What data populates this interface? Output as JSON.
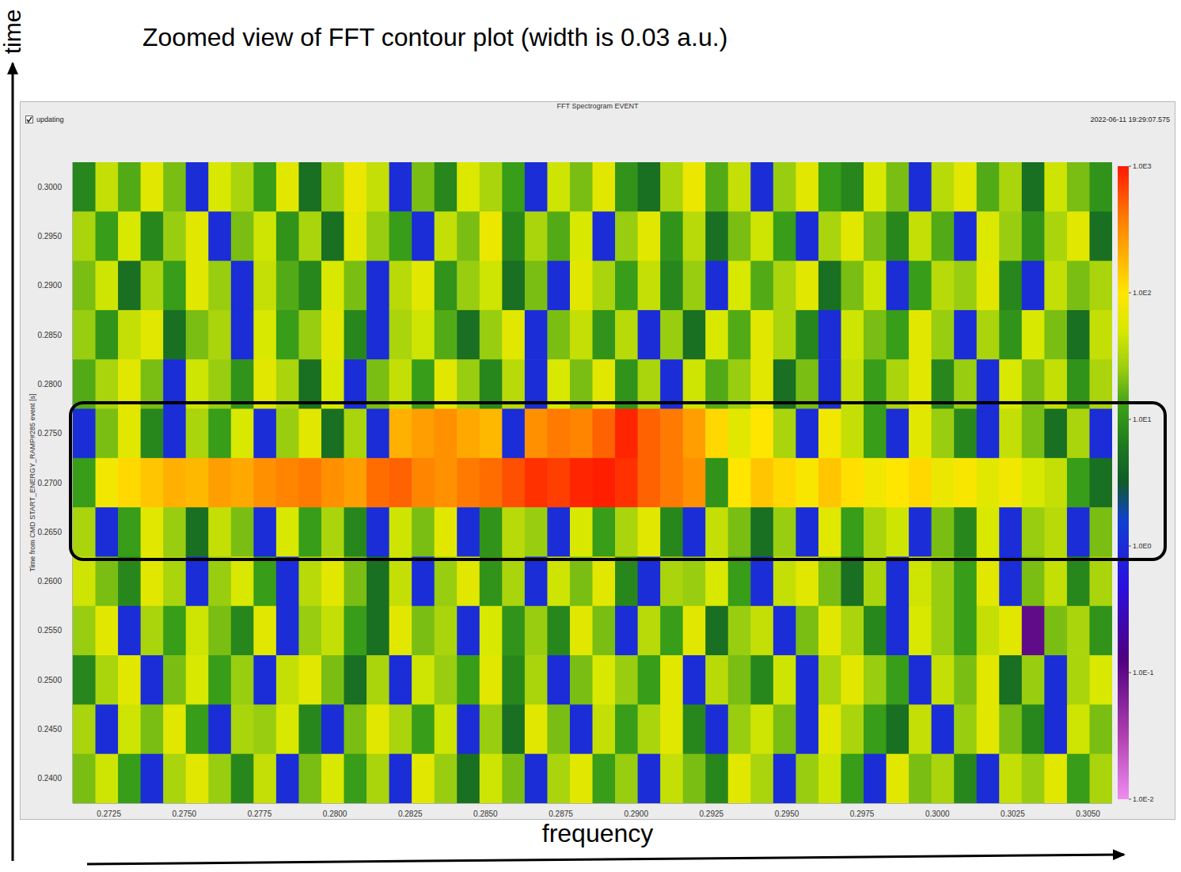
{
  "title": "Zoomed view of FFT contour plot (width is 0.03 a.u.)",
  "y_arrow_label": "time",
  "x_arrow_label": "frequency",
  "window": {
    "title": "FFT Spectrogram EVENT",
    "checkbox": "updating",
    "timestamp": "2022-06-11 19:29:07.575"
  },
  "chart_data": {
    "type": "heatmap",
    "y_label": "Time from CMD START_ENERGY_RAMP#285 event [s]",
    "x": [
      0.271675,
      0.272425,
      0.273175,
      0.273925,
      0.274675,
      0.275425,
      0.276175,
      0.276925,
      0.277675,
      0.278425,
      0.279175,
      0.279925,
      0.280675,
      0.281425,
      0.282175,
      0.282925,
      0.283675,
      0.284425,
      0.285175,
      0.285925,
      0.286675,
      0.287425,
      0.288175,
      0.288925,
      0.289675,
      0.290425,
      0.291175,
      0.291925,
      0.292675,
      0.293425,
      0.294175,
      0.294925,
      0.295675,
      0.296425,
      0.297175,
      0.297925,
      0.298675,
      0.299425,
      0.300175,
      0.300925,
      0.301675,
      0.302425,
      0.303175,
      0.303925,
      0.304675,
      0.305425
    ],
    "y": [
      0.3,
      0.295,
      0.29,
      0.285,
      0.28,
      0.275,
      0.27,
      0.265,
      0.26,
      0.255,
      0.25,
      0.245,
      0.24
    ],
    "cells": [
      [
        8,
        40,
        15,
        60,
        20,
        1,
        50,
        30,
        12,
        60,
        5,
        25,
        70,
        40,
        1,
        20,
        8,
        55,
        30,
        12,
        1,
        45,
        20,
        60,
        10,
        5,
        30,
        70,
        15,
        40,
        1,
        25,
        60,
        12,
        8,
        50,
        20,
        1,
        35,
        60,
        15,
        30,
        5,
        45,
        20,
        10
      ],
      [
        30,
        12,
        50,
        8,
        25,
        60,
        1,
        20,
        45,
        10,
        30,
        5,
        60,
        25,
        12,
        1,
        40,
        20,
        70,
        8,
        30,
        15,
        50,
        1,
        25,
        60,
        10,
        35,
        5,
        20,
        45,
        12,
        1,
        30,
        60,
        20,
        8,
        40,
        15,
        1,
        55,
        25,
        10,
        30,
        60,
        5
      ],
      [
        20,
        45,
        5,
        30,
        12,
        60,
        25,
        1,
        40,
        15,
        8,
        50,
        20,
        1,
        35,
        60,
        10,
        25,
        45,
        5,
        20,
        1,
        60,
        30,
        12,
        40,
        8,
        25,
        1,
        50,
        15,
        30,
        60,
        5,
        20,
        45,
        1,
        12,
        35,
        25,
        60,
        8,
        1,
        40,
        20,
        30
      ],
      [
        25,
        10,
        40,
        60,
        5,
        20,
        30,
        1,
        50,
        12,
        25,
        60,
        8,
        1,
        30,
        45,
        15,
        5,
        25,
        60,
        1,
        20,
        40,
        10,
        35,
        1,
        25,
        5,
        50,
        15,
        60,
        30,
        8,
        1,
        45,
        20,
        12,
        60,
        25,
        1,
        30,
        10,
        50,
        20,
        5,
        40
      ],
      [
        15,
        30,
        60,
        20,
        1,
        45,
        25,
        10,
        60,
        30,
        5,
        50,
        1,
        20,
        40,
        12,
        60,
        25,
        8,
        35,
        1,
        50,
        20,
        60,
        10,
        30,
        1,
        45,
        15,
        25,
        60,
        5,
        20,
        1,
        40,
        12,
        30,
        60,
        8,
        25,
        1,
        50,
        20,
        40,
        10,
        30
      ],
      [
        1,
        20,
        60,
        8,
        1,
        30,
        12,
        50,
        1,
        25,
        60,
        5,
        30,
        1,
        200,
        250,
        300,
        220,
        180,
        1,
        300,
        400,
        350,
        500,
        900,
        500,
        400,
        250,
        120,
        60,
        100,
        30,
        1,
        80,
        40,
        12,
        1,
        60,
        25,
        8,
        1,
        40,
        20,
        5,
        30,
        1
      ],
      [
        12,
        80,
        120,
        150,
        200,
        180,
        250,
        220,
        300,
        350,
        400,
        300,
        250,
        450,
        500,
        350,
        300,
        400,
        450,
        600,
        800,
        700,
        900,
        950,
        800,
        500,
        400,
        300,
        10,
        100,
        150,
        120,
        90,
        150,
        110,
        80,
        100,
        120,
        70,
        90,
        60,
        80,
        50,
        40,
        12,
        5
      ],
      [
        30,
        1,
        12,
        60,
        25,
        5,
        40,
        20,
        1,
        50,
        12,
        30,
        8,
        1,
        45,
        20,
        60,
        1,
        10,
        35,
        25,
        1,
        50,
        12,
        30,
        60,
        8,
        1,
        40,
        20,
        5,
        25,
        1,
        60,
        12,
        30,
        45,
        1,
        20,
        8,
        50,
        1,
        25,
        35,
        1,
        20
      ],
      [
        45,
        20,
        8,
        60,
        30,
        1,
        25,
        50,
        12,
        1,
        35,
        60,
        20,
        5,
        40,
        1,
        25,
        60,
        10,
        30,
        1,
        45,
        20,
        60,
        8,
        1,
        30,
        25,
        50,
        12,
        1,
        40,
        60,
        20,
        5,
        30,
        1,
        45,
        25,
        12,
        60,
        1,
        20,
        40,
        8,
        30
      ],
      [
        25,
        60,
        1,
        30,
        12,
        45,
        20,
        8,
        60,
        1,
        25,
        40,
        12,
        5,
        60,
        20,
        30,
        1,
        50,
        10,
        25,
        8,
        60,
        20,
        1,
        35,
        12,
        60,
        5,
        25,
        40,
        1,
        20,
        60,
        30,
        8,
        1,
        50,
        25,
        12,
        40,
        60,
        0.1,
        20,
        30,
        10
      ],
      [
        8,
        30,
        60,
        1,
        20,
        50,
        12,
        25,
        1,
        40,
        60,
        20,
        5,
        30,
        1,
        45,
        25,
        12,
        60,
        8,
        30,
        1,
        20,
        50,
        25,
        12,
        60,
        1,
        35,
        20,
        8,
        45,
        1,
        30,
        60,
        25,
        12,
        1,
        40,
        20,
        60,
        5,
        25,
        1,
        30,
        50
      ],
      [
        30,
        1,
        45,
        20,
        60,
        12,
        1,
        30,
        25,
        50,
        8,
        1,
        20,
        60,
        30,
        12,
        45,
        1,
        25,
        5,
        60,
        20,
        1,
        40,
        12,
        30,
        60,
        8,
        1,
        25,
        45,
        20,
        1,
        60,
        30,
        12,
        5,
        40,
        1,
        25,
        60,
        20,
        8,
        1,
        45,
        20
      ],
      [
        20,
        45,
        12,
        1,
        30,
        60,
        25,
        8,
        40,
        1,
        20,
        50,
        12,
        30,
        1,
        60,
        25,
        5,
        45,
        20,
        1,
        30,
        60,
        12,
        25,
        1,
        40,
        20,
        8,
        60,
        30,
        1,
        25,
        45,
        12,
        1,
        60,
        20,
        30,
        8,
        1,
        40,
        25,
        60,
        12,
        30
      ]
    ],
    "xlim": [
      0.2713,
      0.3058
    ],
    "xticks": [
      0.2725,
      {
        "value": 0.275,
        "label": "0.2750"
      },
      0.2775,
      {
        "value": 0.28,
        "label": "0.2800"
      },
      0.2825,
      {
        "value": 0.285,
        "label": "0.2850"
      },
      0.2875,
      {
        "value": 0.29,
        "label": "0.2900"
      },
      0.2925,
      {
        "value": 0.295,
        "label": "0.2950"
      },
      0.2975,
      {
        "value": 0.3,
        "label": "0.3000"
      },
      0.3025,
      {
        "value": 0.305,
        "label": "0.3050"
      }
    ],
    "ylim": [
      0.2375,
      0.3025
    ],
    "yticks": [
      {
        "value": 0.24,
        "label": "0.2400"
      },
      {
        "value": 0.245,
        "label": "0.2450"
      },
      {
        "value": 0.25,
        "label": "0.2500"
      },
      {
        "value": 0.255,
        "label": "0.2550"
      },
      {
        "value": 0.26,
        "label": "0.2600"
      },
      {
        "value": 0.265,
        "label": "0.2650"
      },
      {
        "value": 0.27,
        "label": "0.2700"
      },
      {
        "value": 0.275,
        "label": "0.2750"
      },
      {
        "value": 0.28,
        "label": "0.2800"
      },
      {
        "value": 0.285,
        "label": "0.2850"
      },
      {
        "value": 0.29,
        "label": "0.2900"
      },
      {
        "value": 0.295,
        "label": "0.2950"
      },
      {
        "value": 0.3,
        "label": "0.3000"
      }
    ],
    "colorbar": {
      "range": [
        0.01,
        1000
      ],
      "log": true,
      "ticks": [
        {
          "value": 0.01,
          "label": "1.0E-2"
        },
        {
          "value": 0.1,
          "label": "1.0E-1"
        },
        {
          "value": 1,
          "label": "1.0E0"
        },
        {
          "value": 10,
          "label": "1.0E1"
        },
        {
          "value": 100,
          "label": "1.0E2"
        },
        {
          "value": 1000,
          "label": "1.0E3"
        }
      ]
    }
  }
}
